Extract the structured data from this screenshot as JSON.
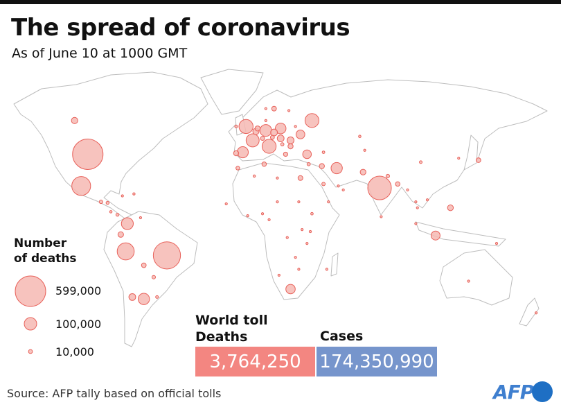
{
  "header": {
    "title": "The spread of coronavirus",
    "subtitle": "As of June 10 at 1000 GMT"
  },
  "legend": {
    "title_line1": "Number",
    "title_line2": "of deaths",
    "items": [
      {
        "label": "599,000",
        "value": 599000
      },
      {
        "label": "100,000",
        "value": 100000
      },
      {
        "label": "10,000",
        "value": 10000
      }
    ]
  },
  "toll": {
    "title": "World toll",
    "deaths_label": "Deaths",
    "deaths_value": "3,764,250",
    "cases_label": "Cases",
    "cases_value": "174,350,990"
  },
  "source": "Source: AFP tally based on official tolls",
  "logo": "AFP",
  "colors": {
    "bubble_fill": "#f6b8b3",
    "bubble_stroke": "#e8615a",
    "deaths_box": "#f38681",
    "cases_box": "#7695cc",
    "land_stroke": "#bdbdbd"
  },
  "map_data": {
    "bubbles": [
      {
        "lon": -98,
        "lat": 39,
        "deaths": 599000
      },
      {
        "lon": -50,
        "lat": -12,
        "deaths": 477000
      },
      {
        "lon": 79,
        "lat": 22,
        "deaths": 359000
      },
      {
        "lon": -102,
        "lat": 23,
        "deaths": 229000
      },
      {
        "lon": -75,
        "lat": -10,
        "deaths": 187000
      },
      {
        "lon": -2,
        "lat": 53,
        "deaths": 128000
      },
      {
        "lon": 12,
        "lat": 43,
        "deaths": 127000
      },
      {
        "lon": 38,
        "lat": 56,
        "deaths": 125000
      },
      {
        "lon": 2,
        "lat": 46,
        "deaths": 110000
      },
      {
        "lon": -74,
        "lat": 4,
        "deaths": 92000
      },
      {
        "lon": 10,
        "lat": 51,
        "deaths": 90000
      },
      {
        "lon": -64,
        "lat": -34,
        "deaths": 83000
      },
      {
        "lon": 53,
        "lat": 32,
        "deaths": 82000
      },
      {
        "lon": -4,
        "lat": 40,
        "deaths": 80000
      },
      {
        "lon": 19,
        "lat": 52,
        "deaths": 74000
      },
      {
        "lon": 25,
        "lat": -29,
        "deaths": 57000
      },
      {
        "lon": 113,
        "lat": -2,
        "deaths": 52000
      },
      {
        "lon": 31,
        "lat": 49,
        "deaths": 50000
      },
      {
        "lon": 35,
        "lat": 39,
        "deaths": 48000
      },
      {
        "lon": 25,
        "lat": 46,
        "deaths": 31000
      },
      {
        "lon": 15,
        "lat": 50,
        "deaths": 30000
      },
      {
        "lon": -71,
        "lat": -33,
        "deaths": 30000
      },
      {
        "lon": 19,
        "lat": 47,
        "deaths": 30000
      },
      {
        "lon": -106,
        "lat": 56,
        "deaths": 26000
      },
      {
        "lon": 4,
        "lat": 50.5,
        "deaths": 25000
      },
      {
        "lon": 122,
        "lat": 12,
        "deaths": 22000
      },
      {
        "lon": 69,
        "lat": 30,
        "deaths": 21000
      },
      {
        "lon": -78,
        "lat": -1.5,
        "deaths": 20000
      },
      {
        "lon": 25,
        "lat": 43,
        "deaths": 17000
      },
      {
        "lon": 31,
        "lat": 27,
        "deaths": 15000
      },
      {
        "lon": -64,
        "lat": -17,
        "deaths": 14000
      },
      {
        "lon": 5,
        "lat": 52,
        "deaths": 17000
      },
      {
        "lon": 67,
        "lat": 48,
        "deaths": 4000
      },
      {
        "lon": 101,
        "lat": 15,
        "deaths": 1200
      },
      {
        "lon": 139,
        "lat": 36,
        "deaths": 14000
      },
      {
        "lon": 104,
        "lat": 35,
        "deaths": 4800
      },
      {
        "lon": 127,
        "lat": 37,
        "deaths": 2000
      },
      {
        "lon": 45,
        "lat": 24,
        "deaths": 7500
      },
      {
        "lon": 44,
        "lat": 33,
        "deaths": 17000
      },
      {
        "lon": 36,
        "lat": 34,
        "deaths": 7000
      },
      {
        "lon": 3,
        "lat": 28,
        "deaths": 3500
      },
      {
        "lon": 9,
        "lat": 34,
        "deaths": 13000
      },
      {
        "lon": -7,
        "lat": 32,
        "deaths": 9200
      },
      {
        "lon": 38,
        "lat": 9,
        "deaths": 4300
      },
      {
        "lon": 37,
        "lat": 0,
        "deaths": 3500
      },
      {
        "lon": 8,
        "lat": 9,
        "deaths": 2100
      },
      {
        "lon": 30,
        "lat": -19,
        "deaths": 1600
      },
      {
        "lon": 28,
        "lat": -13,
        "deaths": 1300
      },
      {
        "lon": -90,
        "lat": 15,
        "deaths": 8000
      },
      {
        "lon": -86,
        "lat": 14.5,
        "deaths": 6000
      },
      {
        "lon": -80,
        "lat": 8.5,
        "deaths": 6000
      },
      {
        "lon": -84,
        "lat": 10,
        "deaths": 4000
      },
      {
        "lon": -70,
        "lat": 19,
        "deaths": 3600
      },
      {
        "lon": -66,
        "lat": 7,
        "deaths": 2900
      },
      {
        "lon": -58,
        "lat": -23,
        "deaths": 8000
      },
      {
        "lon": -56,
        "lat": -33,
        "deaths": 5000
      },
      {
        "lon": 101,
        "lat": 4,
        "deaths": 3000
      },
      {
        "lon": 108,
        "lat": 16,
        "deaths": 60
      },
      {
        "lon": 90,
        "lat": 24,
        "deaths": 13000
      },
      {
        "lon": 84,
        "lat": 28,
        "deaths": 8000
      },
      {
        "lon": 80,
        "lat": 7.5,
        "deaths": 1900
      },
      {
        "lon": 133,
        "lat": -25,
        "deaths": 910
      },
      {
        "lon": 174,
        "lat": -41,
        "deaths": 26
      },
      {
        "lon": 24,
        "lat": 61,
        "deaths": 960
      },
      {
        "lon": 15,
        "lat": 62,
        "deaths": 14500
      },
      {
        "lon": 10,
        "lat": 62,
        "deaths": 790
      },
      {
        "lon": 10,
        "lat": 56,
        "deaths": 2500
      },
      {
        "lon": 22,
        "lat": 39,
        "deaths": 12000
      },
      {
        "lon": 14,
        "lat": 47.5,
        "deaths": 10000
      },
      {
        "lon": 8,
        "lat": 47,
        "deaths": 10900
      },
      {
        "lon": 20,
        "lat": 44,
        "deaths": 7000
      },
      {
        "lon": 28,
        "lat": 53,
        "deaths": 3300
      },
      {
        "lon": 45,
        "lat": 40,
        "deaths": 4500
      },
      {
        "lon": 70,
        "lat": 41,
        "deaths": 700
      },
      {
        "lon": -8,
        "lat": 39.5,
        "deaths": 17000
      },
      {
        "lon": -8,
        "lat": 53,
        "deaths": 5000
      },
      {
        "lon": 54,
        "lat": 23,
        "deaths": 1700
      },
      {
        "lon": 48,
        "lat": 15,
        "deaths": 1300
      },
      {
        "lon": 57,
        "lat": 21,
        "deaths": 2500
      },
      {
        "lon": 17,
        "lat": 27,
        "deaths": 3200
      },
      {
        "lon": 30,
        "lat": 15,
        "deaths": 3000
      },
      {
        "lon": 18,
        "lat": -22,
        "deaths": 700
      },
      {
        "lon": 47,
        "lat": -19,
        "deaths": 900
      },
      {
        "lon": 35,
        "lat": -6,
        "deaths": 21
      },
      {
        "lon": 32,
        "lat": 1,
        "deaths": 400
      },
      {
        "lon": 23,
        "lat": -3,
        "deaths": 800
      },
      {
        "lon": 12,
        "lat": 6,
        "deaths": 1300
      },
      {
        "lon": -1,
        "lat": 8,
        "deaths": 790
      },
      {
        "lon": -14,
        "lat": 14,
        "deaths": 1600
      },
      {
        "lon": 17,
        "lat": 15,
        "deaths": 170
      },
      {
        "lon": -77,
        "lat": 18,
        "deaths": 1000
      },
      {
        "lon": 150,
        "lat": -6,
        "deaths": 170
      },
      {
        "lon": 96,
        "lat": 21,
        "deaths": 3200
      },
      {
        "lon": 102,
        "lat": 12,
        "deaths": 300
      }
    ]
  }
}
